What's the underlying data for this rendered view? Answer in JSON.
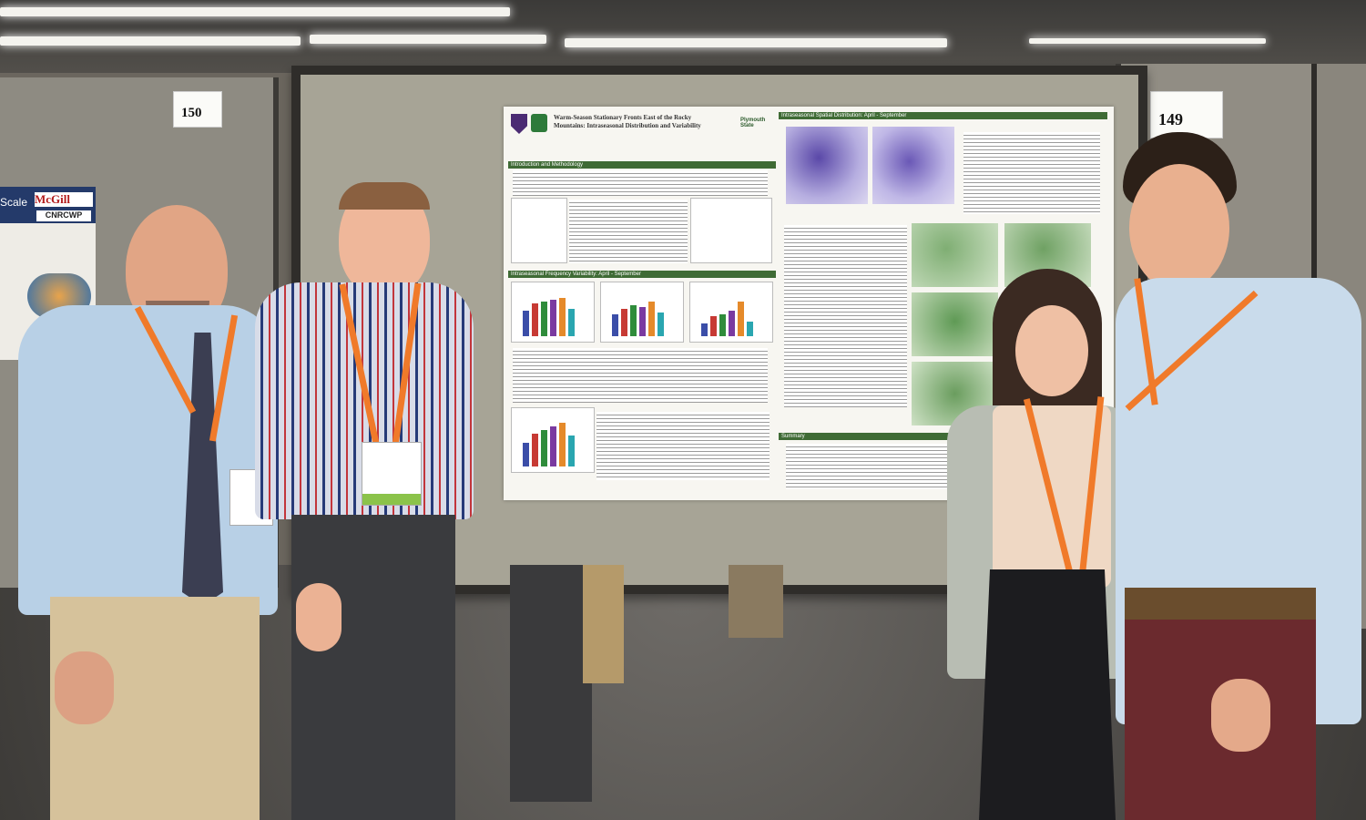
{
  "booth_numbers": {
    "left": "150",
    "right": "149"
  },
  "left_poster": {
    "logo_text": "McGill",
    "sub_text": "CNRCWP",
    "partial_title": "Scale"
  },
  "poster": {
    "title_line1": "Warm-Season Stationary Fronts East of the Rocky",
    "title_line2": "Mountains: Intraseasonal Distribution and Variability",
    "university": "Plymouth State",
    "section_headers": [
      "Introduction and Methodology",
      "Intraseasonal Frequency Variability: April - September",
      "Intraseasonal Spatial Distribution: April - September",
      "Summary"
    ]
  }
}
